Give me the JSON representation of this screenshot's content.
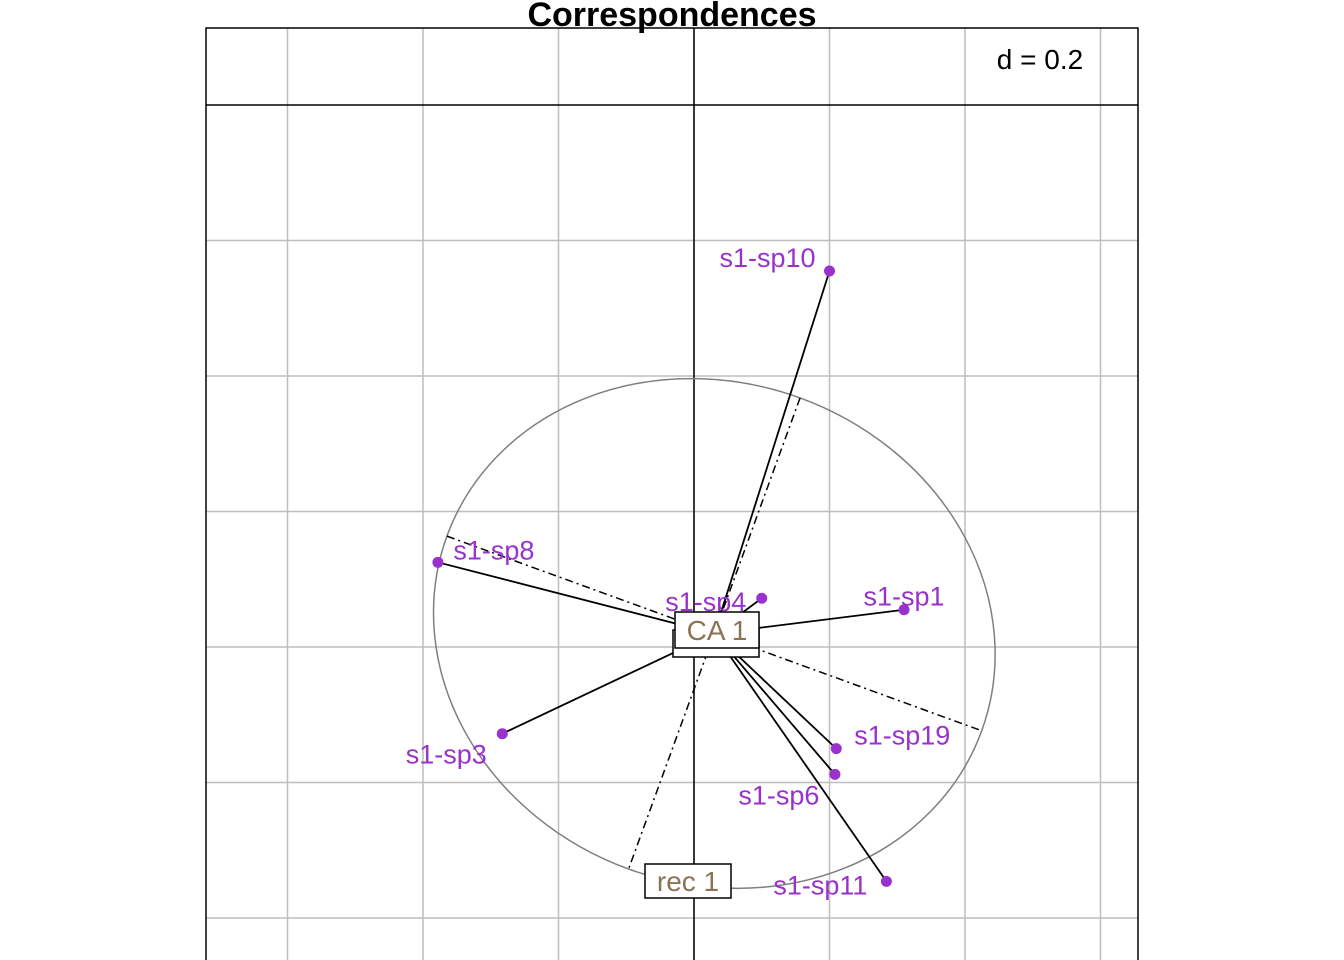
{
  "chart_data": {
    "type": "scatter",
    "title": "Correspondences",
    "scale_label": "d = 0.2",
    "grid": true,
    "xlim": [
      -0.72,
      0.65
    ],
    "ylim": [
      -0.46,
      0.92
    ],
    "grid_x": [
      -0.6,
      -0.4,
      -0.2,
      0.0,
      0.2,
      0.4,
      0.6
    ],
    "grid_y": [
      -0.4,
      -0.2,
      0.0,
      0.2,
      0.4,
      0.6,
      0.8
    ],
    "colors": {
      "points": "#9932cc",
      "labels_box": "#8b7355",
      "ellipse": "#7f7f7f",
      "grid": "#bebebe"
    },
    "center": {
      "x": 0.03,
      "y": 0.02
    },
    "points": [
      {
        "label": "s1-sp10",
        "x": 0.2,
        "y": 0.555
      },
      {
        "label": "s1-sp8",
        "x": -0.378,
        "y": 0.125
      },
      {
        "label": "s1-sp4",
        "x": 0.1,
        "y": 0.072
      },
      {
        "label": "s1-sp1",
        "x": 0.31,
        "y": 0.055
      },
      {
        "label": "s1-sp3",
        "x": -0.283,
        "y": -0.128
      },
      {
        "label": "s1-sp19",
        "x": 0.21,
        "y": -0.15
      },
      {
        "label": "s1-sp6",
        "x": 0.208,
        "y": -0.188
      },
      {
        "label": "s1-sp11",
        "x": 0.284,
        "y": -0.346
      }
    ],
    "ellipse": {
      "cx": 0.03,
      "cy": 0.02,
      "rx": 0.42,
      "ry": 0.37,
      "angle_deg": 20
    },
    "axis_boxes": {
      "CA": "CA 1",
      "rec": "rec 1"
    }
  }
}
